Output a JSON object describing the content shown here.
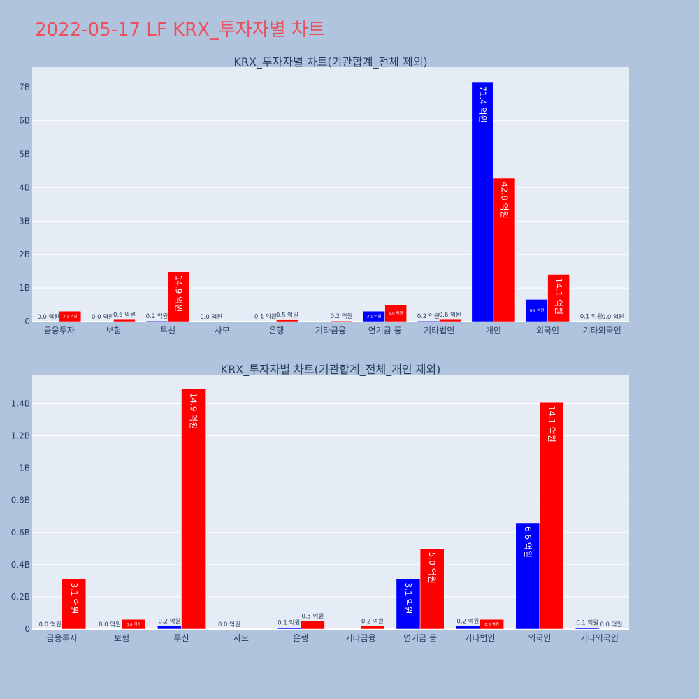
{
  "title": "2022-05-17 LF KRX_투자자별 차트",
  "colors": {
    "buy": "#0000ff",
    "sell": "#ff0000",
    "plot_bg": "#e5ecf6",
    "page_bg": "#b0c4de",
    "title": "#ef4e5c"
  },
  "chart_data": [
    {
      "type": "bar",
      "title": "KRX_투자자별 차트(기관합계_전체 제외)",
      "categories": [
        "금융투자",
        "보험",
        "투신",
        "사모",
        "은행",
        "기타금융",
        "연기금 등",
        "기타법인",
        "개인",
        "외국인",
        "기타외국인"
      ],
      "series": [
        {
          "values": [
            0.0,
            0.0,
            0.02,
            0.0,
            0.01,
            null,
            0.31,
            0.02,
            7.14,
            0.66,
            0.01
          ],
          "labels": [
            "0.0 억원",
            "0.0 억원",
            "0.2 억원",
            "0.0 억원",
            "0.1 억원",
            "",
            "3.1 억원",
            "0.2 억원",
            "71.4 억원",
            "6.6 억원",
            "0.1 억원"
          ]
        },
        {
          "values": [
            0.31,
            0.06,
            1.49,
            null,
            0.05,
            0.02,
            0.5,
            0.06,
            4.28,
            1.41,
            0.0
          ],
          "labels": [
            "3.1 억원",
            "0.6 억원",
            "14.9 억원",
            "",
            "0.5 억원",
            "0.2 억원",
            "5.0 억원",
            "0.6 억원",
            "42.8 억원",
            "14.1 억원",
            "0.0 억원"
          ]
        }
      ],
      "ylim": [
        0,
        7.6
      ],
      "yticks": [
        0,
        1,
        2,
        3,
        4,
        5,
        6,
        7
      ],
      "ytick_labels": [
        "0",
        "1B",
        "2B",
        "3B",
        "4B",
        "5B",
        "6B",
        "7B"
      ],
      "grid": true
    },
    {
      "type": "bar",
      "title": "KRX_투자자별 차트(기관합계_전체_개인 제외)",
      "categories": [
        "금융투자",
        "보험",
        "투신",
        "사모",
        "은행",
        "기타금융",
        "연기금 등",
        "기타법인",
        "외국인",
        "기타외국인"
      ],
      "series": [
        {
          "values": [
            0.0,
            0.0,
            0.02,
            0.0,
            0.01,
            null,
            0.31,
            0.02,
            0.66,
            0.01
          ],
          "labels": [
            "0.0 억원",
            "0.0 억원",
            "0.2 억원",
            "0.0 억원",
            "0.1 억원",
            "",
            "3.1 억원",
            "0.2 억원",
            "6.6 억원",
            "0.1 억원"
          ]
        },
        {
          "values": [
            0.31,
            0.06,
            1.49,
            null,
            0.05,
            0.02,
            0.5,
            0.06,
            1.41,
            0.0
          ],
          "labels": [
            "3.1 억원",
            "0.6 억원",
            "14.9 억원",
            "",
            "0.5 억원",
            "0.2 억원",
            "5.0 억원",
            "0.6 억원",
            "14.1 억원",
            "0.0 억원"
          ]
        }
      ],
      "ylim": [
        0,
        1.58
      ],
      "yticks": [
        0,
        0.2,
        0.4,
        0.6,
        0.8,
        1.0,
        1.2,
        1.4
      ],
      "ytick_labels": [
        "0",
        "0.2B",
        "0.4B",
        "0.6B",
        "0.8B",
        "1B",
        "1.2B",
        "1.4B"
      ],
      "grid": true
    }
  ]
}
